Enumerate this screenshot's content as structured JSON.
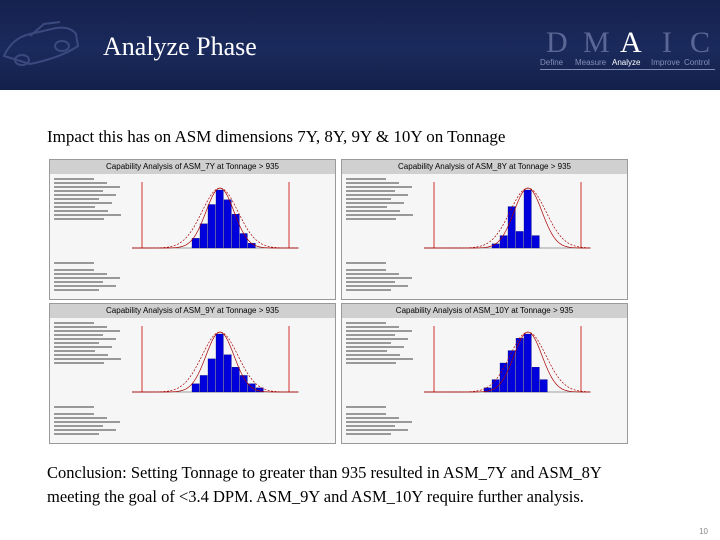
{
  "header": {
    "title": "Analyze Phase",
    "dmaic": {
      "letters": [
        "D",
        "M",
        "A",
        "I",
        "C"
      ],
      "words": [
        "Define",
        "Measure",
        "Analyze",
        "Improve",
        "Control"
      ],
      "active": "Analyze"
    }
  },
  "subtitle": "Impact this has on ASM dimensions 7Y, 8Y, 9Y & 10Y on Tonnage",
  "panels": [
    {
      "title": "Capability Analysis of ASM_7Y at Tonnage > 935"
    },
    {
      "title": "Capability Analysis of ASM_8Y at Tonnage > 935"
    },
    {
      "title": "Capability Analysis of ASM_9Y at Tonnage > 935"
    },
    {
      "title": "Capability Analysis of ASM_10Y at Tonnage > 935"
    }
  ],
  "conclusion": {
    "line1": "Conclusion: Setting Tonnage to greater than 935 resulted in ASM_7Y and ASM_8Y",
    "line2": "meeting the goal of <3.4 DPM. ASM_9Y and ASM_10Y require further analysis."
  },
  "page_number": "10",
  "colors": {
    "header_bg": "#1a2a5c",
    "bar_fill": "#0000dd",
    "spec_line": "#cc0000"
  }
}
